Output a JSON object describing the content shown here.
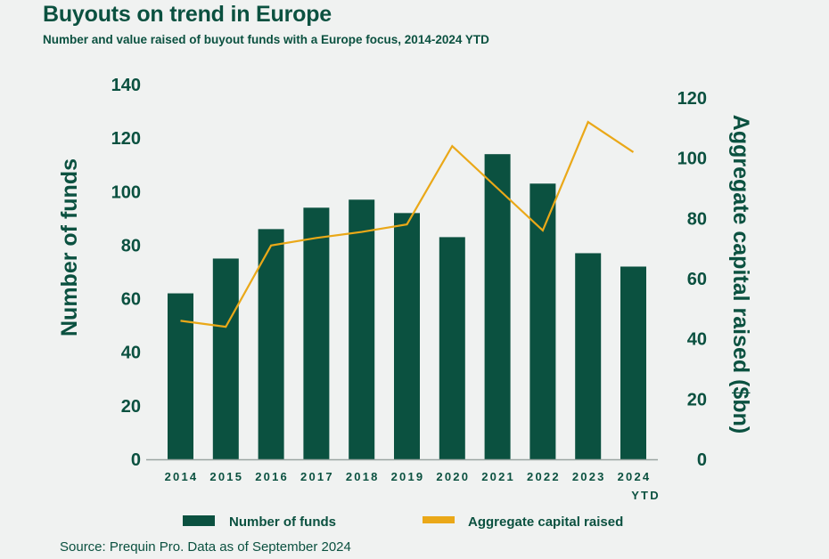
{
  "title": "Buyouts on trend in Europe",
  "subtitle": "Number and value raised of buyout funds with a Europe focus, 2014-2024 YTD",
  "source": "Source: Prequin Pro. Data as of September 2024",
  "colors": {
    "bar": "#0b5140",
    "line": "#eaa818",
    "text": "#0b5140",
    "background": "#f0f2f1"
  },
  "chart_data": {
    "type": "bar",
    "categories": [
      "2014",
      "2015",
      "2016",
      "2017",
      "2018",
      "2019",
      "2020",
      "2021",
      "2022",
      "2023",
      "2024"
    ],
    "category_sublabels": [
      "",
      "",
      "",
      "",
      "",
      "",
      "",
      "",
      "",
      "",
      "YTD"
    ],
    "series": [
      {
        "name": "Number of funds",
        "type": "bar",
        "axis": "left",
        "values": [
          62,
          75,
          86,
          94,
          97,
          92,
          83,
          114,
          103,
          77,
          72
        ]
      },
      {
        "name": "Aggregate capital raised",
        "type": "line",
        "axis": "right",
        "values": [
          46,
          44,
          71,
          73.5,
          75.5,
          78,
          104,
          90,
          76,
          112,
          102
        ]
      }
    ],
    "ylabel": "Number of funds",
    "ylabel_right": "Aggregate capital raised ($bn)",
    "ylim": [
      0,
      140
    ],
    "ylim_right": [
      0,
      120
    ],
    "yticks": [
      0,
      20,
      40,
      60,
      80,
      100,
      120,
      140
    ],
    "yticks_right": [
      0,
      20,
      40,
      60,
      80,
      100,
      120
    ],
    "grid": false,
    "legend_position": "bottom"
  }
}
